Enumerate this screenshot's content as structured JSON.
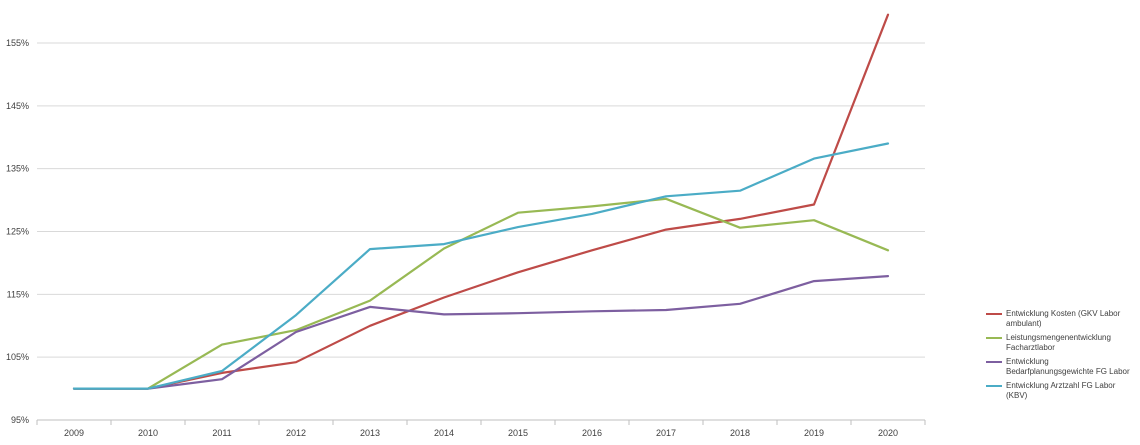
{
  "chart_data": {
    "type": "line",
    "categories": [
      "2009",
      "2010",
      "2011",
      "2012",
      "2013",
      "2014",
      "2015",
      "2016",
      "2017",
      "2018",
      "2019",
      "2020"
    ],
    "yticks": [
      "95%",
      "105%",
      "115%",
      "125%",
      "135%",
      "145%",
      "155%"
    ],
    "ylim": [
      95,
      158
    ],
    "grid": true,
    "legend_position": "right",
    "series": [
      {
        "name": "Entwicklung Kosten (GKV Labor ambulant)",
        "color": "#be4b48",
        "values": [
          100,
          100,
          102.5,
          104.2,
          110,
          114.5,
          118.5,
          122,
          125.3,
          127,
          129.3,
          159.5
        ]
      },
      {
        "name": "Leistungsmengenentwicklung Facharztlabor",
        "color": "#98b954",
        "values": [
          100,
          100,
          107,
          109.3,
          114,
          122.3,
          128,
          129,
          130.2,
          125.6,
          126.8,
          122
        ]
      },
      {
        "name": "Entwicklung Bedarfplanungsgewichte FG Labor",
        "color": "#7d5fa0",
        "values": [
          100,
          100,
          101.5,
          109,
          113,
          111.8,
          112,
          112.3,
          112.5,
          113.5,
          117.1,
          117.9
        ]
      },
      {
        "name": "Entwicklung Arztzahl FG Labor (KBV)",
        "color": "#4bacc6",
        "values": [
          100,
          100,
          102.8,
          111.7,
          122.2,
          123,
          125.7,
          127.8,
          130.6,
          131.5,
          136.6,
          139
        ]
      }
    ]
  }
}
